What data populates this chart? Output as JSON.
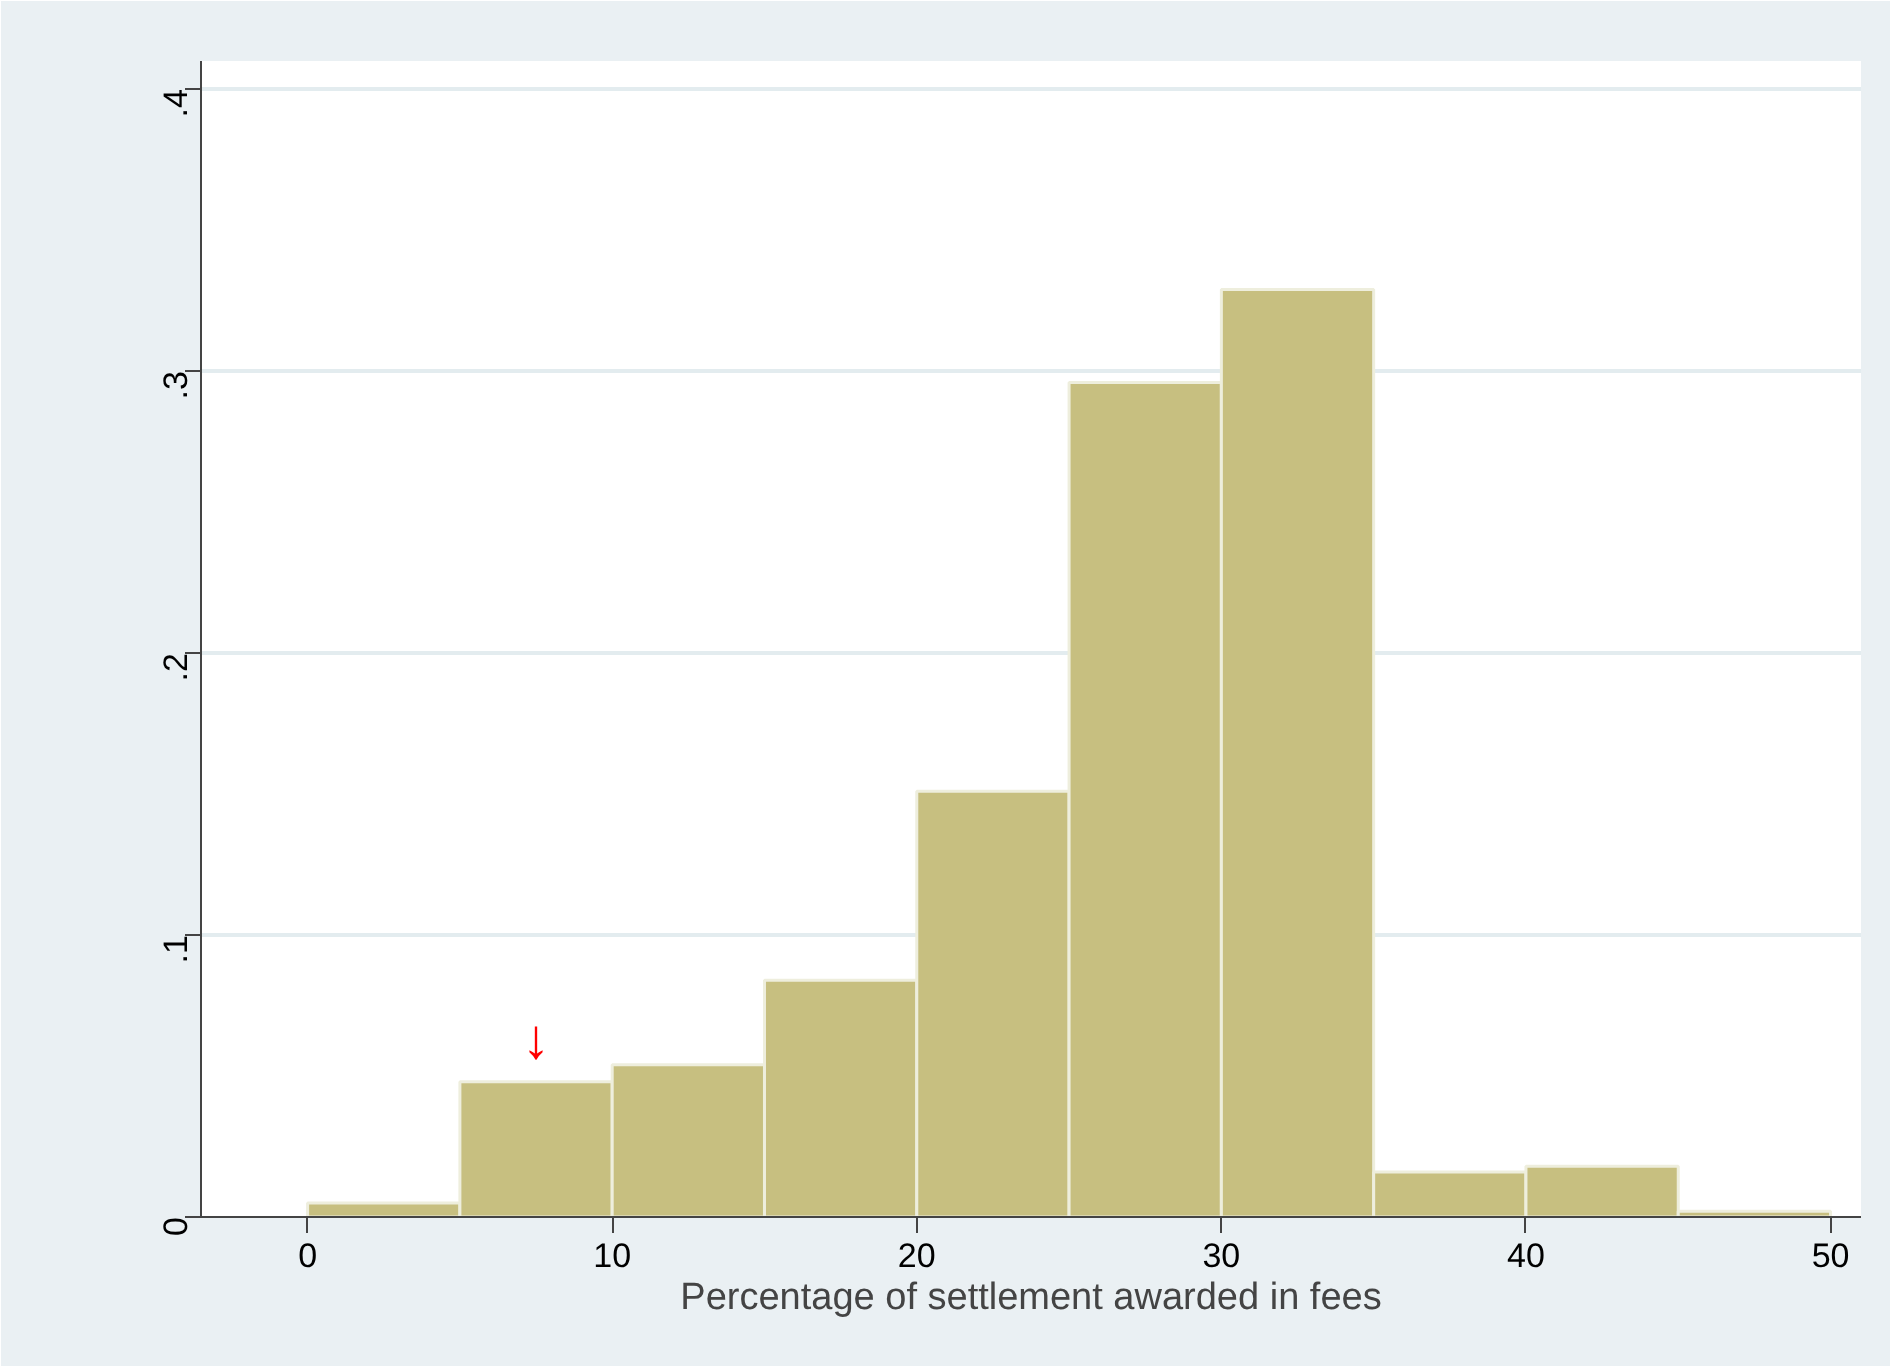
{
  "chart_data": {
    "type": "histogram",
    "xlabel": "Percentage of settlement awarded in fees",
    "bins": [
      0,
      5,
      10,
      15,
      20,
      25,
      30,
      35,
      40,
      45,
      50
    ],
    "values": [
      0.005,
      0.048,
      0.054,
      0.084,
      0.151,
      0.296,
      0.329,
      0.016,
      0.018,
      0.002
    ],
    "color": "#c7bf80",
    "xlim": [
      -3.5,
      51
    ],
    "ylim": [
      0,
      0.41
    ],
    "xticks": [
      0,
      10,
      20,
      30,
      40,
      50
    ],
    "yticks": [
      {
        "value": 0,
        "label": "0"
      },
      {
        "value": 0.1,
        "label": ".1"
      },
      {
        "value": 0.2,
        "label": ".2"
      },
      {
        "value": 0.3,
        "label": ".3"
      },
      {
        "value": 0.4,
        "label": ".4"
      }
    ],
    "annotations": [
      {
        "text": "↓",
        "x": 7.5,
        "y": 0.048
      }
    ],
    "grid": "y"
  }
}
